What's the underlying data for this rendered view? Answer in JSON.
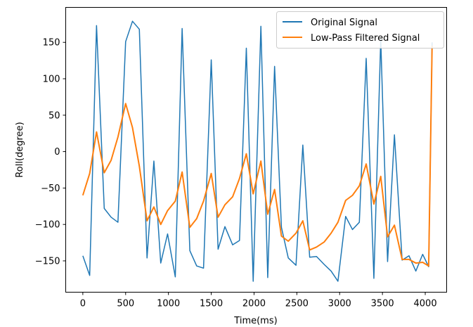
{
  "chart_data": {
    "type": "line",
    "title": "",
    "xlabel": "Time(ms)",
    "ylabel": "Roll(degree)",
    "xlim": [
      -200,
      4250
    ],
    "ylim": [
      -193,
      198
    ],
    "xticks": [
      0,
      500,
      1000,
      1500,
      2000,
      2500,
      3000,
      3500,
      4000
    ],
    "yticks": [
      -150,
      -100,
      -50,
      0,
      50,
      100,
      150
    ],
    "grid": false,
    "legend_position": "top-right",
    "series": [
      {
        "name": "Original Signal",
        "color": "#1f77b4",
        "x": [
          0,
          80,
          160,
          250,
          330,
          410,
          500,
          580,
          660,
          750,
          830,
          910,
          990,
          1080,
          1160,
          1250,
          1330,
          1410,
          1500,
          1580,
          1660,
          1750,
          1830,
          1910,
          1990,
          2080,
          2160,
          2240,
          2320,
          2400,
          2490,
          2570,
          2650,
          2730,
          2820,
          2900,
          2980,
          3070,
          3150,
          3230,
          3310,
          3400,
          3480,
          3560,
          3640,
          3730,
          3810,
          3890,
          3970,
          4040,
          4080
        ],
        "y": [
          -143,
          -170,
          173,
          -78,
          -90,
          -97,
          151,
          179,
          168,
          -146,
          -13,
          -153,
          -113,
          -172,
          169,
          -136,
          -157,
          -160,
          126,
          -134,
          -103,
          -128,
          -122,
          142,
          -178,
          172,
          -173,
          117,
          -104,
          -146,
          -156,
          9,
          -145,
          -144,
          -155,
          -164,
          -178,
          -89,
          -107,
          -97,
          128,
          -174,
          154,
          -151,
          23,
          -149,
          -143,
          -164,
          -141,
          -158,
          150
        ]
      },
      {
        "name": "Low-Pass Filtered Signal",
        "color": "#ff7f0e",
        "x": [
          0,
          80,
          160,
          250,
          330,
          410,
          500,
          580,
          660,
          750,
          830,
          910,
          990,
          1080,
          1160,
          1250,
          1330,
          1410,
          1500,
          1580,
          1660,
          1750,
          1830,
          1910,
          1990,
          2080,
          2160,
          2240,
          2320,
          2400,
          2490,
          2570,
          2650,
          2730,
          2820,
          2900,
          2980,
          3070,
          3150,
          3230,
          3310,
          3400,
          3480,
          3560,
          3640,
          3730,
          3810,
          3890,
          3970,
          4040,
          4080
        ],
        "y": [
          -60,
          -30,
          27,
          -29,
          -12,
          20,
          66,
          33,
          -20,
          -95,
          -76,
          -100,
          -81,
          -68,
          -28,
          -104,
          -92,
          -68,
          -30,
          -90,
          -73,
          -62,
          -37,
          -3,
          -58,
          -13,
          -86,
          -52,
          -116,
          -123,
          -112,
          -95,
          -135,
          -131,
          -124,
          -112,
          -97,
          -67,
          -60,
          -47,
          -17,
          -72,
          -34,
          -117,
          -101,
          -148,
          -148,
          -153,
          -152,
          -157,
          145
        ]
      }
    ]
  }
}
